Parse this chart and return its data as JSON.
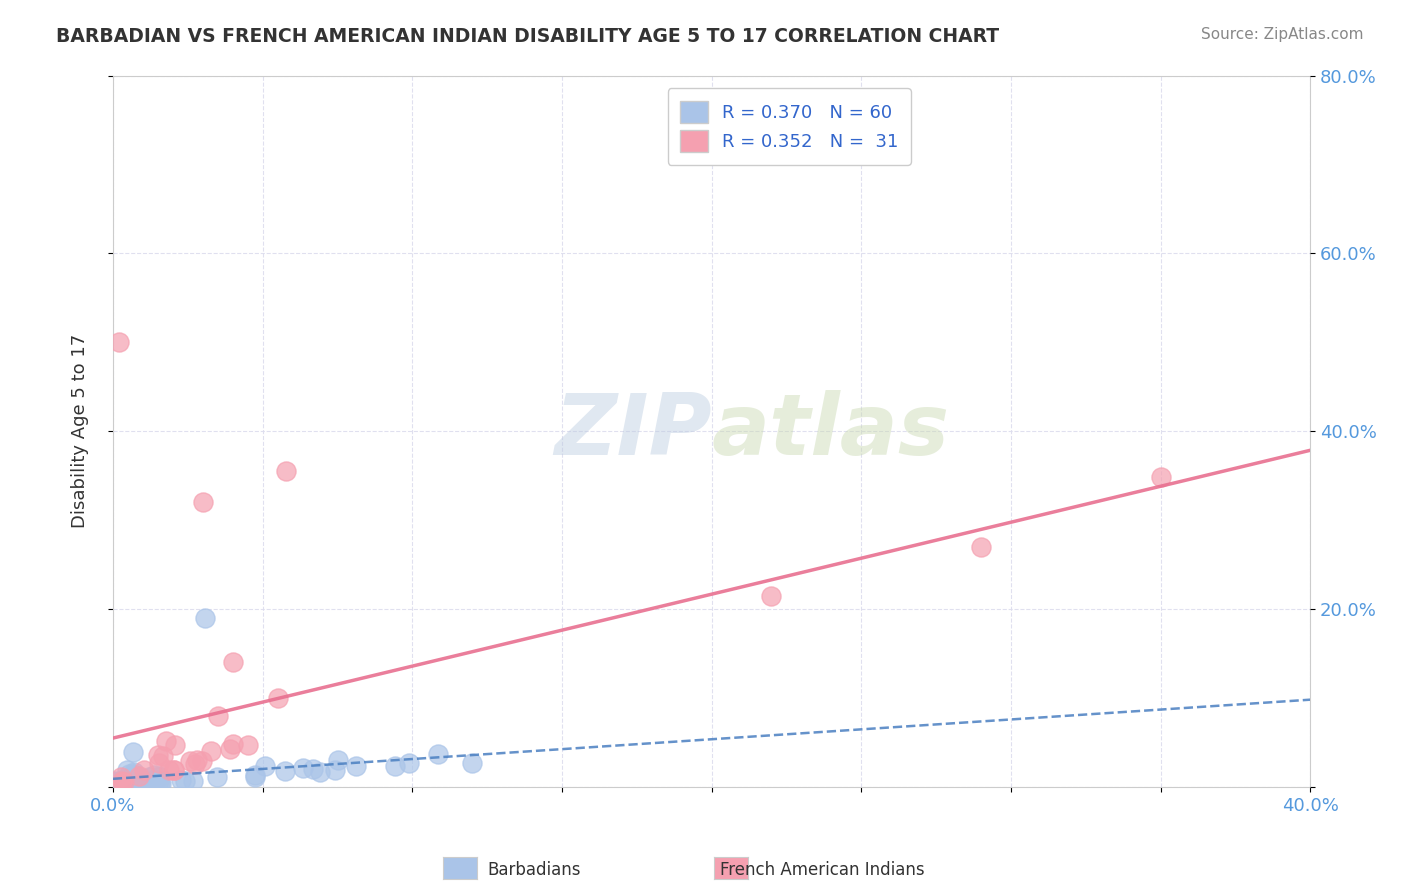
{
  "title": "BARBADIAN VS FRENCH AMERICAN INDIAN DISABILITY AGE 5 TO 17 CORRELATION CHART",
  "source": "Source: ZipAtlas.com",
  "ylabel": "Disability Age 5 to 17",
  "xlim": [
    0.0,
    0.4
  ],
  "ylim": [
    0.0,
    0.8
  ],
  "xticks": [
    0.0,
    0.05,
    0.1,
    0.15,
    0.2,
    0.25,
    0.3,
    0.35,
    0.4
  ],
  "yticks": [
    0.0,
    0.2,
    0.4,
    0.6,
    0.8
  ],
  "background_color": "#ffffff",
  "grid_color": "#ddddee",
  "barbadian_color": "#aac4e8",
  "french_color": "#f5a0b0",
  "barbadian_line_color": "#4a7fc1",
  "french_line_color": "#e87090",
  "R_barbadian": 0.37,
  "N_barbadian": 60,
  "R_french": 0.352,
  "N_french": 31,
  "watermark_zip": "ZIP",
  "watermark_atlas": "atlas",
  "tick_color": "#5599dd",
  "title_color": "#333333",
  "source_color": "#888888",
  "ylabel_color": "#333333"
}
